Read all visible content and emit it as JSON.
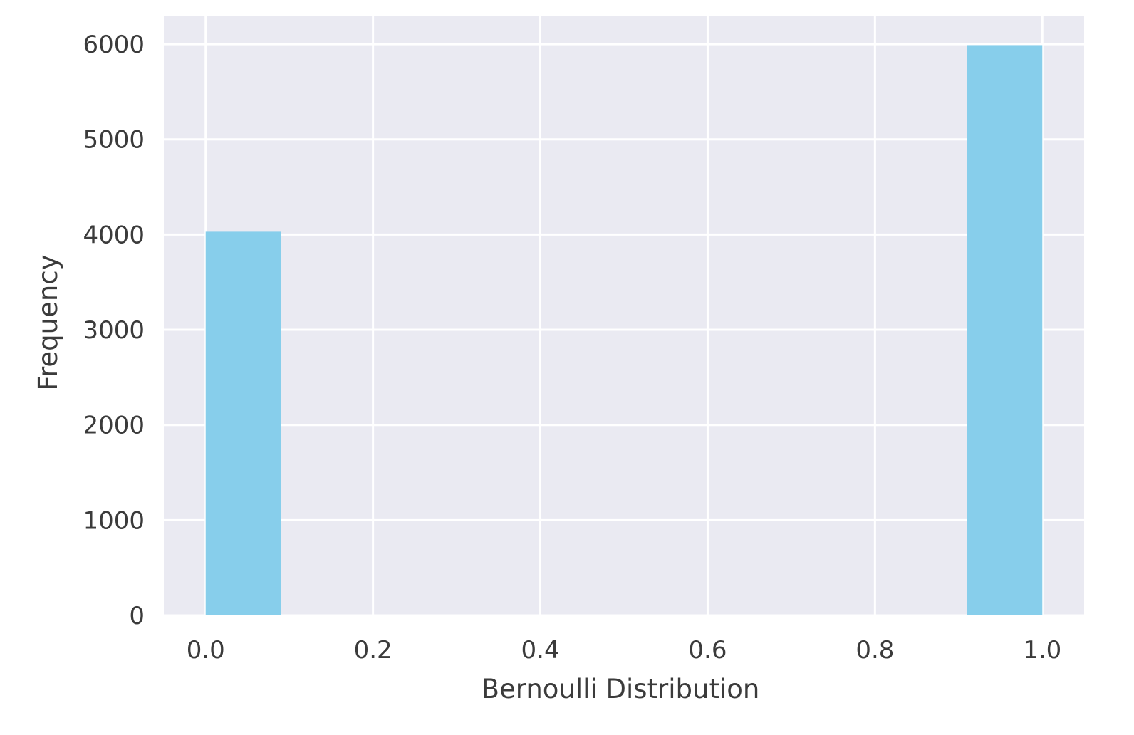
{
  "chart_data": {
    "type": "bar",
    "title": "",
    "xlabel": "Bernoulli Distribution",
    "ylabel": "Frequency",
    "xlim": [
      -0.05,
      1.05
    ],
    "ylim": [
      0,
      6300
    ],
    "x_ticks": [
      0.0,
      0.2,
      0.4,
      0.6,
      0.8,
      1.0
    ],
    "x_tick_labels": [
      "0.0",
      "0.2",
      "0.4",
      "0.6",
      "0.8",
      "1.0"
    ],
    "y_ticks": [
      0,
      1000,
      2000,
      3000,
      4000,
      5000,
      6000
    ],
    "y_tick_labels": [
      "0",
      "1000",
      "2000",
      "3000",
      "4000",
      "5000",
      "6000"
    ],
    "grid": true,
    "bars": [
      {
        "x0": 0.0,
        "x1": 0.09,
        "value": 4030
      },
      {
        "x0": 0.91,
        "x1": 1.0,
        "value": 5990
      }
    ],
    "colors": {
      "bar": "#87ceeb",
      "plot_background": "#eaeaf2",
      "grid": "#ffffff",
      "text": "#3b3b3b"
    }
  }
}
